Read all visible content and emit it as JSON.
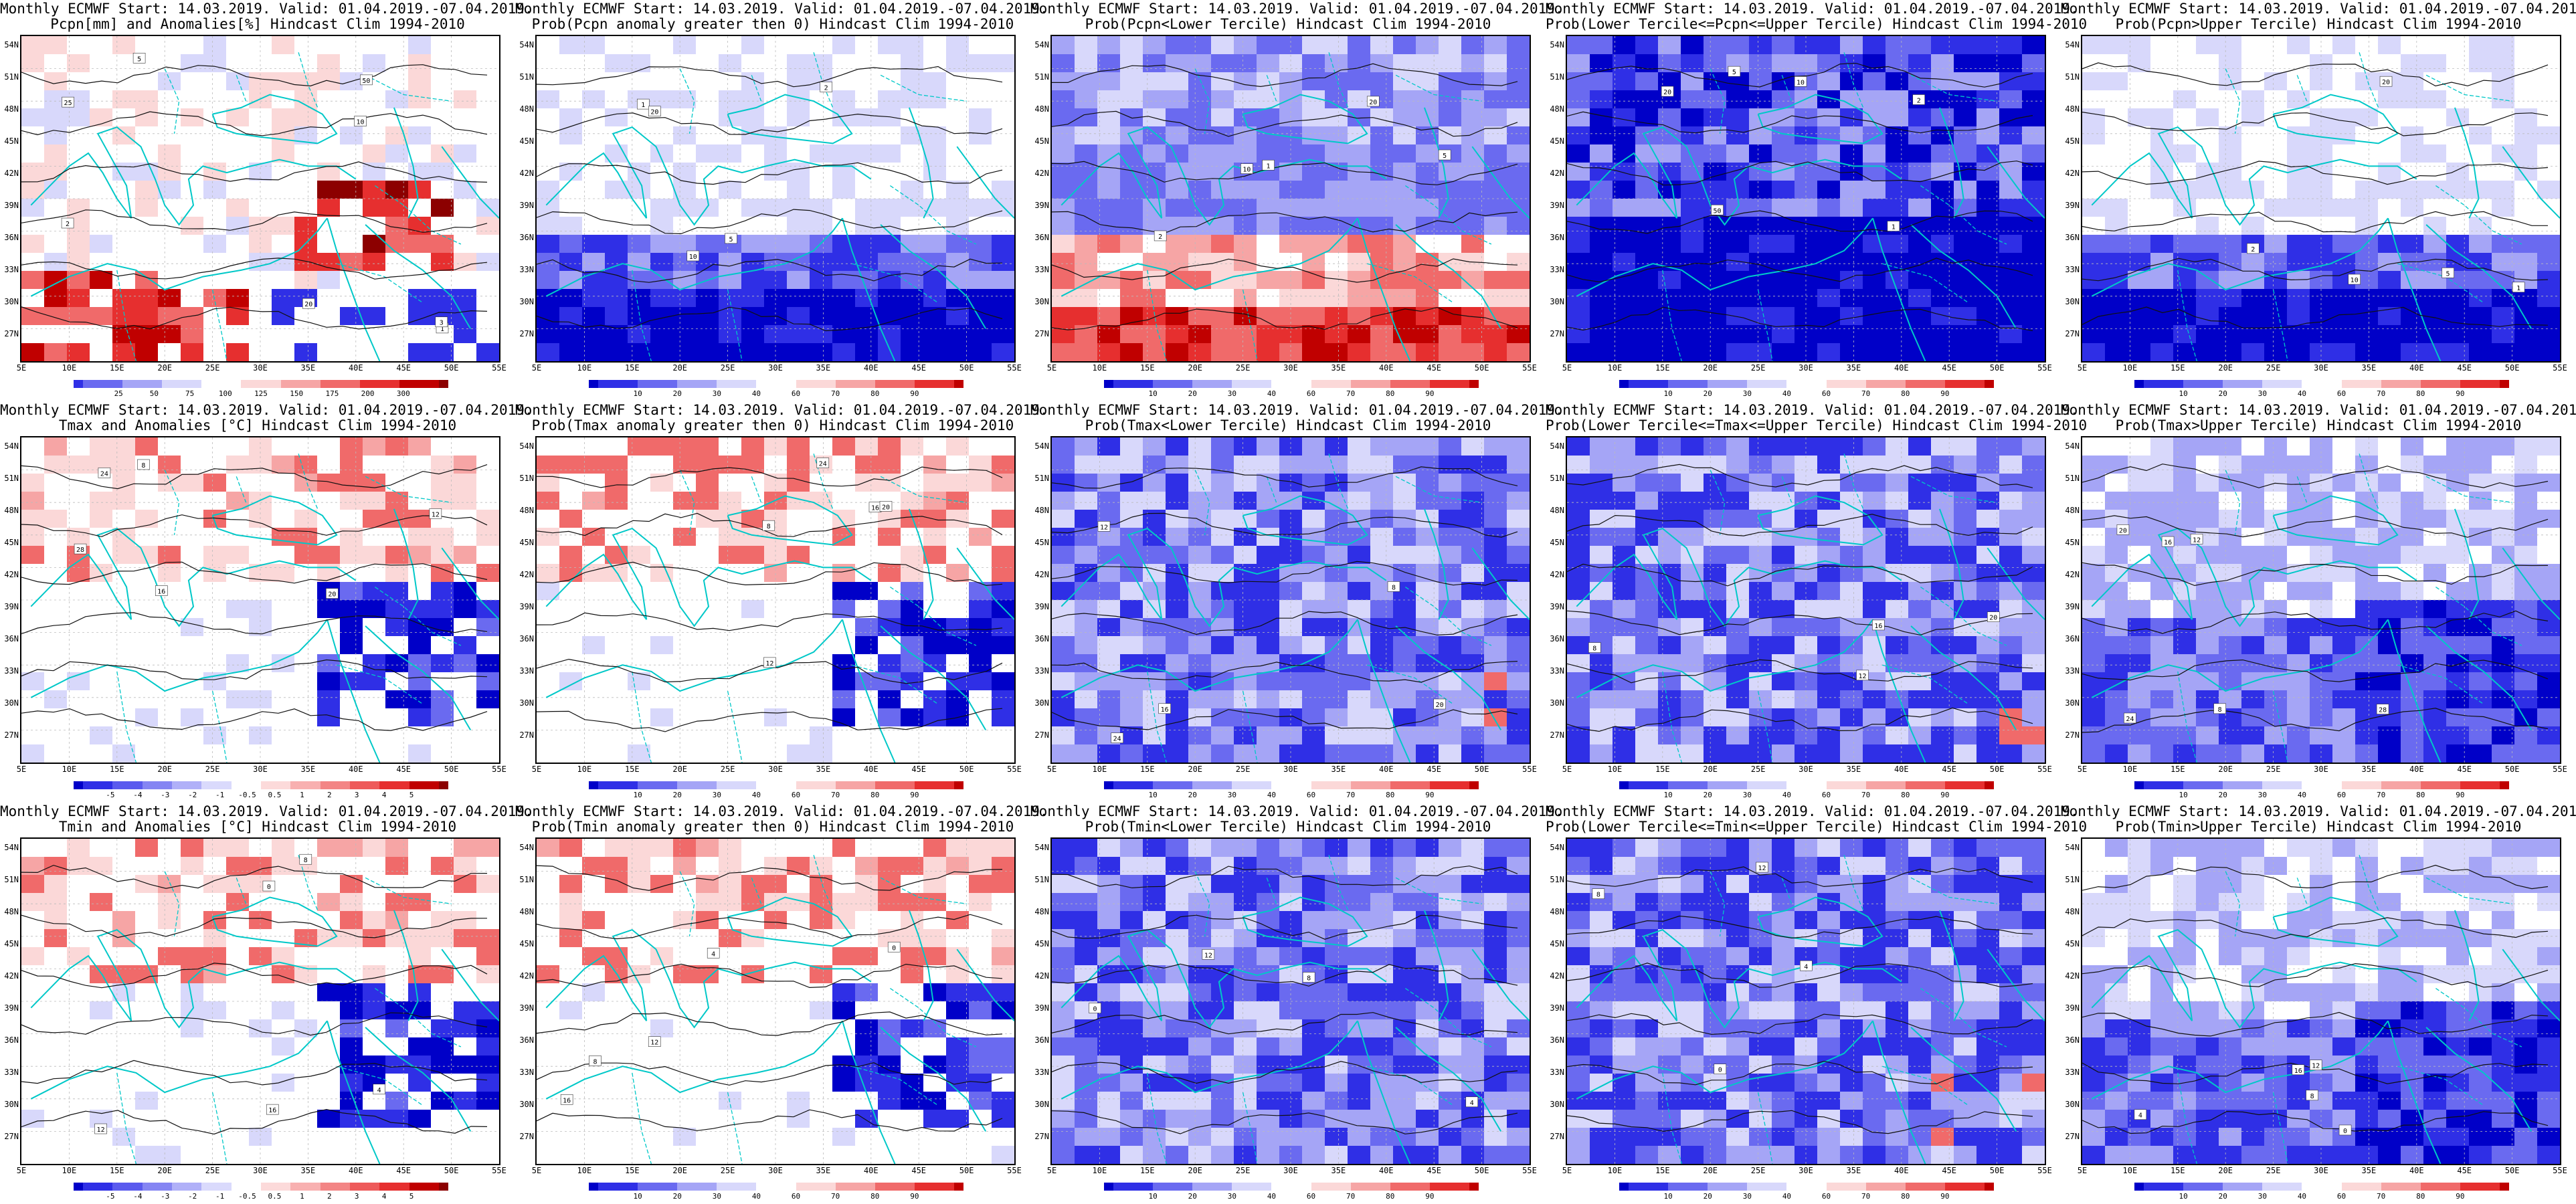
{
  "title_line1": "Monthly ECMWF Start: 14.03.2019. Valid: 01.04.2019.-07.04.2019.",
  "lat_labels": [
    "54N",
    "51N",
    "48N",
    "45N",
    "42N",
    "39N",
    "36N",
    "33N",
    "30N",
    "27N"
  ],
  "lon_labels": [
    "5E",
    "10E",
    "15E",
    "20E",
    "25E",
    "30E",
    "35E",
    "40E",
    "45E",
    "50E",
    "55E"
  ],
  "colorbars": {
    "pcpn_anom": {
      "labels": [
        "25",
        "50",
        "75",
        "100",
        "125",
        "150",
        "175",
        "200",
        "300"
      ],
      "colors": [
        "#2f2fe6",
        "#6a6af0",
        "#a5a5f6",
        "#d8d8fb",
        "#ffffff",
        "#fbd8d8",
        "#f6a5a5",
        "#f06a6a",
        "#e62f2f",
        "#c00000",
        "#8c0000"
      ]
    },
    "prob": {
      "labels": [
        "10",
        "20",
        "30",
        "40",
        "60",
        "70",
        "80",
        "90"
      ],
      "colors": [
        "#0000c8",
        "#2f2fe6",
        "#6a6af0",
        "#a5a5f6",
        "#d8d8fb",
        "#ffffff",
        "#fbd8d8",
        "#f6a5a5",
        "#f06a6a",
        "#e62f2f",
        "#c00000"
      ]
    },
    "temp_anom": {
      "labels": [
        "-5",
        "-4",
        "-3",
        "-2",
        "-1",
        "-0.5",
        "0.5",
        "1",
        "2",
        "3",
        "4",
        "5"
      ],
      "colors": [
        "#0000c8",
        "#2f2fe6",
        "#5a5aee",
        "#8585f3",
        "#b0b0f8",
        "#dadafc",
        "#ffffff",
        "#fcdada",
        "#f8b0b0",
        "#f38585",
        "#ee5a5a",
        "#e62f2f",
        "#c00000",
        "#8c0000"
      ]
    }
  },
  "panels": [
    {
      "id": "r0c0",
      "title2": "Pcpn[mm] and Anomalies[%] Hindcast Clim 1994-2010",
      "cbar": "pcpn_anom",
      "tone": "wet",
      "markers": [
        "1",
        "2",
        "3",
        "5",
        "10",
        "20",
        "25",
        "50"
      ]
    },
    {
      "id": "r0c1",
      "title2": "Prob(Pcpn anomaly greater then 0) Hindcast Clim 1994-2010",
      "cbar": "prob",
      "tone": "blue_south",
      "markers": [
        "1",
        "2",
        "5",
        "10",
        "20"
      ]
    },
    {
      "id": "r0c2",
      "title2": "Prob(Pcpn<Lower Tercile) Hindcast Clim 1994-2010",
      "cbar": "prob",
      "tone": "red_south",
      "markers": [
        "1",
        "2",
        "5",
        "10",
        "20"
      ]
    },
    {
      "id": "r0c3",
      "title2": "Prob(Lower Tercile<=Pcpn<=Upper Tercile) Hindcast Clim 1994-2010",
      "cbar": "prob",
      "tone": "deep_blue",
      "markers": [
        "1",
        "2",
        "5",
        "10",
        "20",
        "50"
      ]
    },
    {
      "id": "r0c4",
      "title2": "Prob(Pcpn>Upper Tercile) Hindcast Clim 1994-2010",
      "cbar": "prob",
      "tone": "blue_south",
      "markers": [
        "1",
        "2",
        "5",
        "10",
        "20"
      ]
    },
    {
      "id": "r1c0",
      "title2": "Tmax and Anomalies [°C] Hindcast Clim 1994-2010",
      "cbar": "temp_anom",
      "tone": "warm_north",
      "markers": [
        "8",
        "12",
        "16",
        "20",
        "24",
        "28"
      ]
    },
    {
      "id": "r1c1",
      "title2": "Prob(Tmax anomaly greater then 0) Hindcast Clim 1994-2010",
      "cbar": "prob",
      "tone": "warm_north",
      "markers": [
        "8",
        "12",
        "16",
        "20",
        "24"
      ]
    },
    {
      "id": "r1c2",
      "title2": "Prob(Tmax<Lower Tercile) Hindcast Clim 1994-2010",
      "cbar": "prob",
      "tone": "blue_mix",
      "markers": [
        "8",
        "12",
        "16",
        "20",
        "24"
      ]
    },
    {
      "id": "r1c3",
      "title2": "Prob(Lower Tercile<=Tmax<=Upper Tercile) Hindcast Clim 1994-2010",
      "cbar": "prob",
      "tone": "blue_mix",
      "markers": [
        "8",
        "12",
        "16",
        "20"
      ]
    },
    {
      "id": "r1c4",
      "title2": "Prob(Tmax>Upper Tercile) Hindcast Clim 1994-2010",
      "cbar": "prob",
      "tone": "blue_se",
      "markers": [
        "8",
        "12",
        "16",
        "20",
        "24",
        "28"
      ]
    },
    {
      "id": "r2c0",
      "title2": "Tmin and Anomalies [°C] Hindcast Clim 1994-2010",
      "cbar": "temp_anom",
      "tone": "warm_north",
      "markers": [
        "0",
        "4",
        "8",
        "12",
        "16"
      ]
    },
    {
      "id": "r2c1",
      "title2": "Prob(Tmin anomaly greater then 0) Hindcast Clim 1994-2010",
      "cbar": "prob",
      "tone": "warm_north",
      "markers": [
        "0",
        "4",
        "8",
        "12",
        "16"
      ]
    },
    {
      "id": "r2c2",
      "title2": "Prob(Tmin<Lower Tercile) Hindcast Clim 1994-2010",
      "cbar": "prob",
      "tone": "blue_mix",
      "markers": [
        "0",
        "4",
        "8",
        "12"
      ]
    },
    {
      "id": "r2c3",
      "title2": "Prob(Lower Tercile<=Tmin<=Upper Tercile) Hindcast Clim 1994-2010",
      "cbar": "prob",
      "tone": "blue_mix",
      "markers": [
        "0",
        "4",
        "8",
        "12"
      ]
    },
    {
      "id": "r2c4",
      "title2": "Prob(Tmin>Upper Tercile) Hindcast Clim 1994-2010",
      "cbar": "prob",
      "tone": "blue_se",
      "markers": [
        "0",
        "4",
        "8",
        "12",
        "16"
      ]
    }
  ]
}
